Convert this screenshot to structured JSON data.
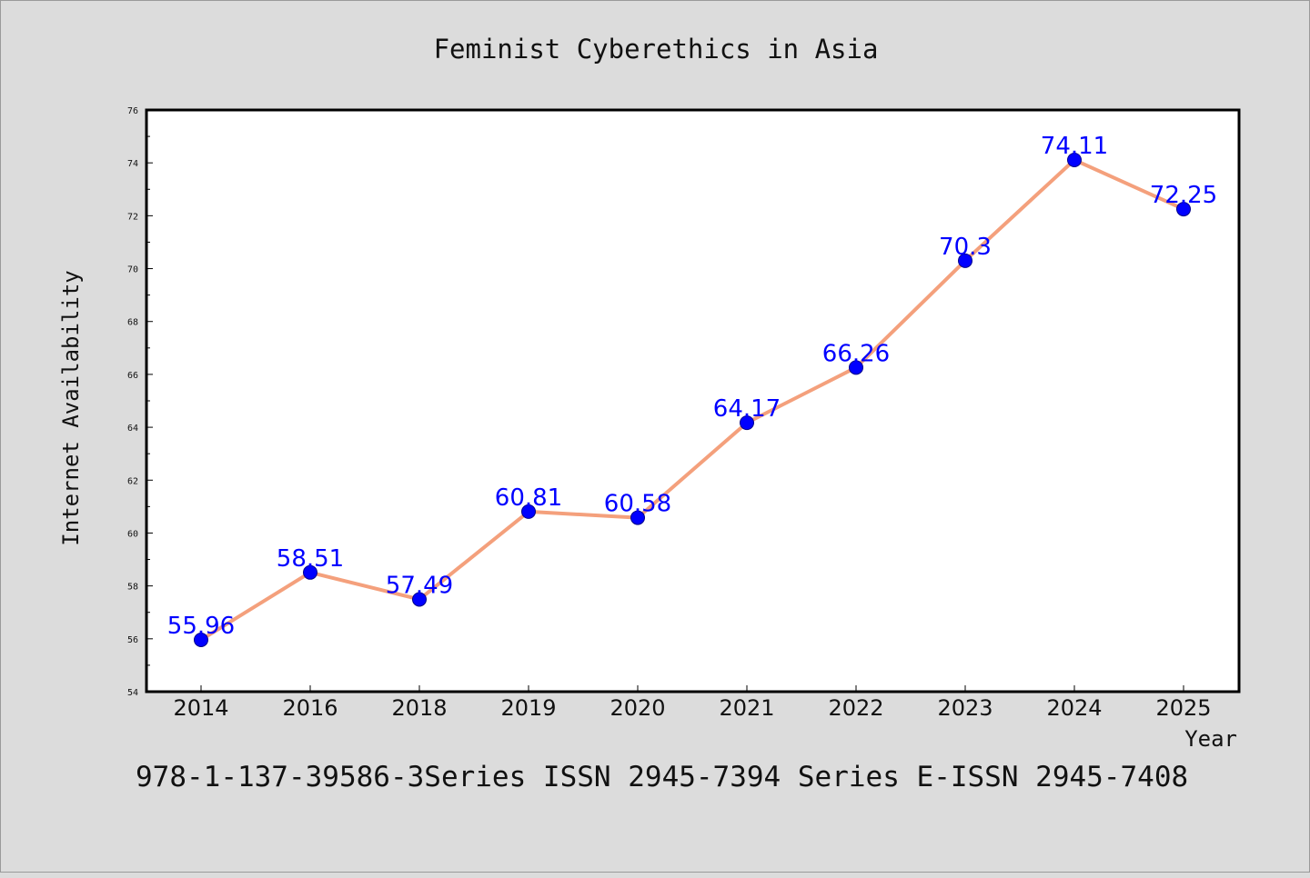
{
  "chart_data": {
    "type": "line",
    "title": "Feminist Cyberethics in Asia",
    "xlabel": "Year",
    "ylabel": "Internet Availability",
    "categories": [
      "2014",
      "2016",
      "2018",
      "2019",
      "2020",
      "2021",
      "2022",
      "2023",
      "2024",
      "2025"
    ],
    "series": [
      {
        "values": [
          55.96,
          58.51,
          57.49,
          60.81,
          60.58,
          64.17,
          66.26,
          70.3,
          74.11,
          72.25
        ]
      }
    ],
    "data_labels": [
      "55.96",
      "58.51",
      "57.49",
      "60.81",
      "60.58",
      "64.17",
      "66.26",
      "70.3",
      "74.11",
      "72.25"
    ],
    "ylim": [
      54,
      76
    ],
    "yticks": [
      "54",
      "56",
      "58",
      "60",
      "62",
      "64",
      "66",
      "68",
      "70",
      "72",
      "74",
      "76"
    ],
    "grid": false,
    "line_color": "#f4a07c",
    "marker_color": "#0000ff",
    "label_color": "#0000ff"
  },
  "footer_text": "978-1-137-39586-3Series ISSN 2945-7394 Series E-ISSN 2945-7408"
}
